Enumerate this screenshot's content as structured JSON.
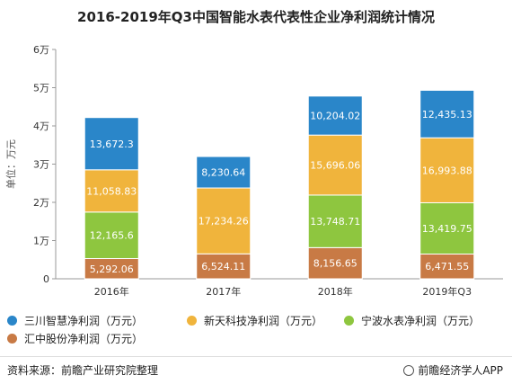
{
  "chart_data": {
    "type": "bar",
    "stacked": true,
    "title": "2016-2019年Q3中国智能水表代表性企业净利润统计情况",
    "ylabel": "单位：万元",
    "ylim": [
      0,
      60000
    ],
    "yticks": [
      0,
      10000,
      20000,
      30000,
      40000,
      50000,
      60000
    ],
    "ytick_labels": [
      "0",
      "1万",
      "2万",
      "3万",
      "4万",
      "5万",
      "6万"
    ],
    "categories": [
      "2016年",
      "2017年",
      "2018年",
      "2019年Q3"
    ],
    "series": [
      {
        "name": "汇中股份净利润（万元）",
        "color": "#c87a45",
        "values": [
          5292.06,
          6524.11,
          8156.65,
          6471.55
        ],
        "labels": [
          "5,292.06",
          "6,524.11",
          "8,156.65",
          "6,471.55"
        ]
      },
      {
        "name": "宁波水表净利润（万元）",
        "color": "#8ec63f",
        "values": [
          12165.6,
          null,
          13748.71,
          13419.75
        ],
        "labels": [
          "12,165.6",
          "",
          "13,748.71",
          "13,419.75"
        ]
      },
      {
        "name": "新天科技净利润（万元）",
        "color": "#f0b43c",
        "values": [
          11058.83,
          17234.26,
          15696.06,
          16993.88
        ],
        "labels": [
          "11,058.83",
          "17,234.26",
          "15,696.06",
          "16,993.88"
        ]
      },
      {
        "name": "三川智慧净利润（万元）",
        "color": "#2a86c9",
        "values": [
          13672.3,
          8230.64,
          10204.02,
          12435.13
        ],
        "labels": [
          "13,672.3",
          "8,230.64",
          "10,204.02",
          "12,435.13"
        ]
      }
    ],
    "legend_order": [
      3,
      2,
      1,
      0
    ],
    "legend_position": "bottom",
    "grid": false
  },
  "footer": {
    "source": "资料来源：前瞻产业研究院整理",
    "brand": "前瞻经济学人APP"
  }
}
